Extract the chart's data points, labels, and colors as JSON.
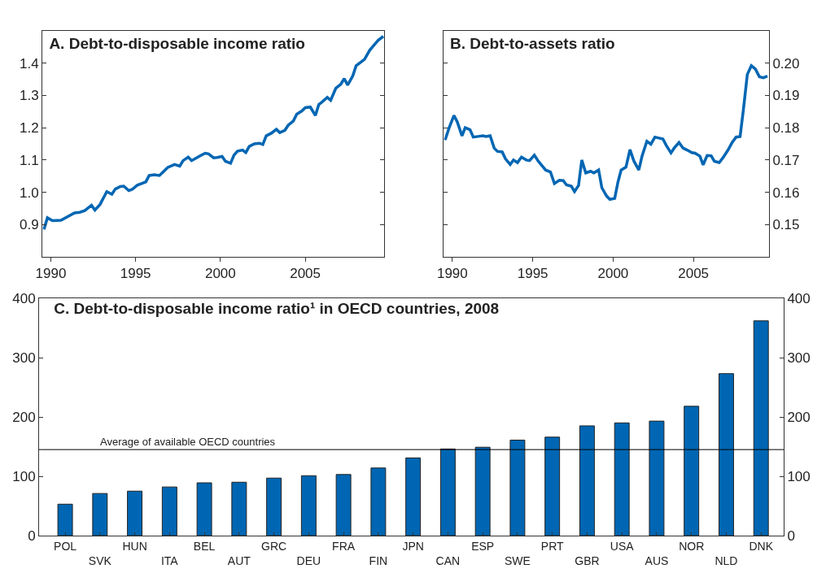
{
  "chart_data": [
    {
      "type": "line",
      "title": "A. Debt-to-disposable income ratio",
      "xlim": [
        1989.5,
        2009.65
      ],
      "xticks": [
        1990,
        1995,
        2000,
        2005
      ],
      "ylim": [
        0.8,
        1.5
      ],
      "yticks": [
        {
          "value": 0.9,
          "label": "0.9"
        },
        {
          "value": 1.0,
          "label": "1.0"
        },
        {
          "value": 1.1,
          "label": "1.1"
        },
        {
          "value": 1.2,
          "label": "1.2"
        },
        {
          "value": 1.3,
          "label": "1.3"
        },
        {
          "value": 1.4,
          "label": "1.4"
        }
      ],
      "marker": "none",
      "line_style": "solid",
      "series": [
        {
          "color": "#0066b3",
          "x": [
            1989.6,
            1989.8,
            1990.1,
            1990.6,
            1991.4,
            1991.7,
            1992.0,
            1992.4,
            1992.6,
            1992.9,
            1993.3,
            1993.6,
            1993.8,
            1994.1,
            1994.3,
            1994.6,
            1994.8,
            1995.1,
            1995.6,
            1995.8,
            1996.1,
            1996.4,
            1996.6,
            1996.9,
            1997.3,
            1997.6,
            1997.8,
            1998.1,
            1998.3,
            1998.8,
            1999.1,
            1999.3,
            1999.6,
            1999.8,
            2000.1,
            2000.3,
            2000.6,
            2000.8,
            2001.0,
            2001.3,
            2001.5,
            2001.7,
            2002.0,
            2002.3,
            2002.5,
            2002.7,
            2003.0,
            2003.3,
            2003.5,
            2003.8,
            2004.0,
            2004.3,
            2004.5,
            2004.8,
            2005.0,
            2005.3,
            2005.6,
            2005.8,
            2006.0,
            2006.3,
            2006.5,
            2006.8,
            2007.1,
            2007.3,
            2007.5,
            2007.8,
            2008.0,
            2008.3,
            2008.5,
            2008.8,
            2009.1,
            2009.3,
            2009.6
          ],
          "values": [
            0.885,
            0.921,
            0.912,
            0.913,
            0.936,
            0.938,
            0.943,
            0.96,
            0.945,
            0.962,
            1.002,
            0.994,
            1.01,
            1.018,
            1.019,
            1.005,
            1.009,
            1.022,
            1.032,
            1.052,
            1.054,
            1.052,
            1.062,
            1.077,
            1.086,
            1.081,
            1.098,
            1.109,
            1.098,
            1.113,
            1.121,
            1.119,
            1.107,
            1.108,
            1.111,
            1.096,
            1.09,
            1.115,
            1.127,
            1.131,
            1.123,
            1.142,
            1.15,
            1.152,
            1.148,
            1.175,
            1.183,
            1.195,
            1.185,
            1.192,
            1.208,
            1.221,
            1.242,
            1.252,
            1.262,
            1.264,
            1.238,
            1.272,
            1.28,
            1.294,
            1.285,
            1.322,
            1.335,
            1.352,
            1.332,
            1.36,
            1.392,
            1.404,
            1.412,
            1.44,
            1.459,
            1.471,
            1.483
          ]
        }
      ]
    },
    {
      "type": "line",
      "title": "B. Debt-to-assets ratio",
      "xlim": [
        1989.45,
        2009.7
      ],
      "xticks": [
        1990,
        1995,
        2000,
        2005
      ],
      "y2lim": [
        0.14,
        0.21
      ],
      "y2ticks": [
        {
          "value": 0.15,
          "label": "0.15"
        },
        {
          "value": 0.16,
          "label": "0.16"
        },
        {
          "value": 0.17,
          "label": "0.17"
        },
        {
          "value": 0.18,
          "label": "0.18"
        },
        {
          "value": 0.19,
          "label": "0.19"
        },
        {
          "value": 0.2,
          "label": "0.20"
        }
      ],
      "marker": "none",
      "line_style": "solid",
      "series": [
        {
          "color": "#0066b3",
          "axis": "y2",
          "x": [
            1989.55,
            1989.8,
            1990.1,
            1990.3,
            1990.6,
            1990.8,
            1991.1,
            1991.3,
            1991.6,
            1991.9,
            1992.1,
            1992.35,
            1992.6,
            1992.8,
            1993.1,
            1993.3,
            1993.6,
            1993.8,
            1994.05,
            1994.3,
            1994.6,
            1994.8,
            1995.1,
            1995.35,
            1995.6,
            1995.8,
            1996.1,
            1996.35,
            1996.65,
            1996.9,
            1997.1,
            1997.4,
            1997.6,
            1997.85,
            1998.05,
            1998.3,
            1998.6,
            1998.8,
            1999.1,
            1999.3,
            1999.6,
            1999.8,
            2000.1,
            2000.3,
            2000.5,
            2000.8,
            2001.05,
            2001.3,
            2001.6,
            2001.8,
            2002.1,
            2002.35,
            2002.6,
            2002.85,
            2003.1,
            2003.3,
            2003.6,
            2003.8,
            2004.1,
            2004.35,
            2004.6,
            2004.9,
            2005.1,
            2005.4,
            2005.6,
            2005.85,
            2006.1,
            2006.3,
            2006.6,
            2006.85,
            2007.15,
            2007.4,
            2007.65,
            2007.9,
            2008.1,
            2008.35,
            2008.6,
            2008.85,
            2009.1,
            2009.35,
            2009.6
          ],
          "values": [
            0.1762,
            0.18,
            0.1838,
            0.1819,
            0.1775,
            0.18,
            0.1794,
            0.1771,
            0.1773,
            0.1775,
            0.1773,
            0.1775,
            0.1737,
            0.1727,
            0.1725,
            0.1704,
            0.1686,
            0.17,
            0.1692,
            0.1709,
            0.17,
            0.1698,
            0.1715,
            0.1696,
            0.1681,
            0.1669,
            0.1663,
            0.1627,
            0.1637,
            0.1636,
            0.1623,
            0.1619,
            0.1602,
            0.1621,
            0.17,
            0.166,
            0.1665,
            0.166,
            0.1669,
            0.1614,
            0.1588,
            0.1578,
            0.1581,
            0.1631,
            0.1669,
            0.1678,
            0.1732,
            0.1696,
            0.1669,
            0.1712,
            0.1758,
            0.1749,
            0.1771,
            0.1768,
            0.1765,
            0.1746,
            0.1722,
            0.1737,
            0.1754,
            0.1737,
            0.1731,
            0.1723,
            0.1721,
            0.1712,
            0.1685,
            0.1714,
            0.1713,
            0.1696,
            0.1692,
            0.1708,
            0.1731,
            0.1754,
            0.1771,
            0.1773,
            0.1854,
            0.1965,
            0.1992,
            0.1982,
            0.1958,
            0.1955,
            0.196
          ]
        }
      ]
    },
    {
      "type": "bar",
      "title": "C. Debt-to-disposable income ratio¹ in OECD countries, 2008",
      "categories": [
        "POL",
        "SVK",
        "HUN",
        "ITA",
        "BEL",
        "AUT",
        "GRC",
        "DEU",
        "FRA",
        "FIN",
        "JPN",
        "CAN",
        "ESP",
        "SWE",
        "PRT",
        "GBR",
        "USA",
        "AUS",
        "NOR",
        "NLD",
        "DNK"
      ],
      "values": [
        53,
        71,
        75,
        82,
        89,
        90,
        97,
        101,
        103,
        114,
        131,
        146,
        149,
        161,
        166,
        185,
        190,
        193,
        218,
        273,
        362
      ],
      "color": "#0066b3",
      "ylim": [
        0,
        400
      ],
      "yticks": [
        0,
        100,
        200,
        300,
        400
      ],
      "y2lim": [
        0,
        400
      ],
      "y2ticks": [
        0,
        100,
        200,
        300,
        400
      ],
      "ref_lines": [
        {
          "axis": "y",
          "value": 145,
          "label": "Average of available OECD countries",
          "color": "#000000"
        }
      ]
    }
  ]
}
